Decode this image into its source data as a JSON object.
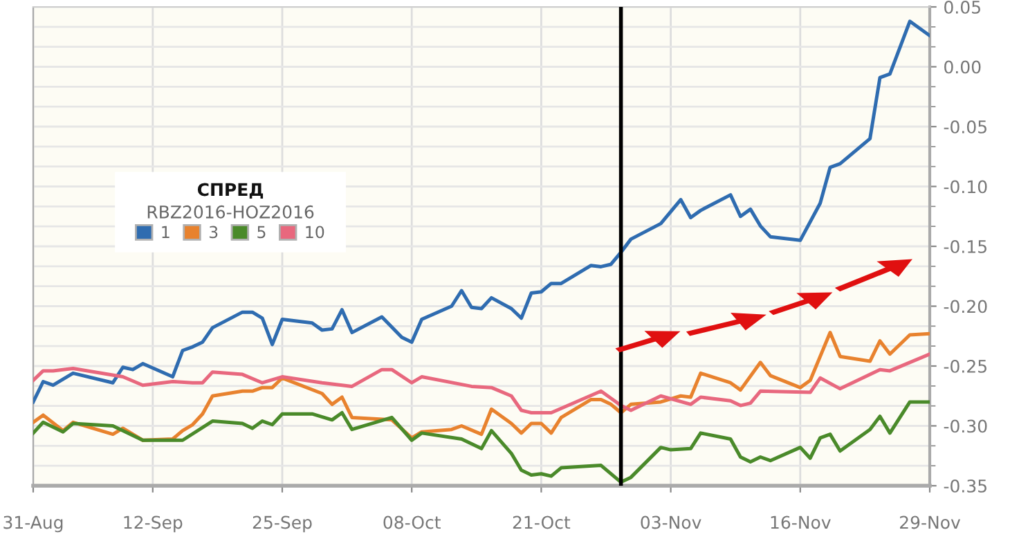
{
  "chart_data": {
    "type": "line",
    "legend_title": "СПРЕД",
    "subtitle": "RBZ2016-HOZ2016",
    "xlim": [
      "2016-08-31",
      "2016-11-29"
    ],
    "xticks": [
      {
        "value": "2016-08-31",
        "label": "31-Aug"
      },
      {
        "value": "2016-09-12",
        "label": "12-Sep"
      },
      {
        "value": "2016-09-25",
        "label": "25-Sep"
      },
      {
        "value": "2016-10-08",
        "label": "08-Oct"
      },
      {
        "value": "2016-10-21",
        "label": "21-Oct"
      },
      {
        "value": "2016-11-03",
        "label": "03-Nov"
      },
      {
        "value": "2016-11-16",
        "label": "16-Nov"
      },
      {
        "value": "2016-11-29",
        "label": "29-Nov"
      }
    ],
    "ylim": [
      -0.35,
      0.05
    ],
    "yticks": [
      {
        "value": -0.35,
        "label": "-0.35"
      },
      {
        "value": -0.3,
        "label": "-0.30"
      },
      {
        "value": -0.25,
        "label": "-0.25"
      },
      {
        "value": -0.2,
        "label": "-0.20"
      },
      {
        "value": -0.15,
        "label": "-0.15"
      },
      {
        "value": -0.1,
        "label": "-0.10"
      },
      {
        "value": -0.05,
        "label": "-0.05"
      },
      {
        "value": 0,
        "label": "0.00"
      },
      {
        "value": 0.05,
        "label": "0.05"
      }
    ],
    "grid": true,
    "legend": "left",
    "marker": "none",
    "line_style": "solid",
    "ref_lines": [
      {
        "axis": "x",
        "value": "2016-10-29",
        "label": null,
        "color": "#000000"
      }
    ],
    "series": [
      {
        "name": "1",
        "color": "#2f6cb0",
        "x": [
          "2016-08-31",
          "2016-09-01",
          "2016-09-02",
          "2016-09-04",
          "2016-09-08",
          "2016-09-09",
          "2016-09-10",
          "2016-09-11",
          "2016-09-14",
          "2016-09-15",
          "2016-09-16",
          "2016-09-17",
          "2016-09-18",
          "2016-09-21",
          "2016-09-22",
          "2016-09-23",
          "2016-09-24",
          "2016-09-25",
          "2016-09-28",
          "2016-09-29",
          "2016-09-30",
          "2016-10-01",
          "2016-10-02",
          "2016-10-05",
          "2016-10-07",
          "2016-10-08",
          "2016-10-09",
          "2016-10-12",
          "2016-10-13",
          "2016-10-14",
          "2016-10-15",
          "2016-10-16",
          "2016-10-18",
          "2016-10-19",
          "2016-10-20",
          "2016-10-21",
          "2016-10-22",
          "2016-10-23",
          "2016-10-26",
          "2016-10-27",
          "2016-10-28",
          "2016-10-29",
          "2016-10-30",
          "2016-11-02",
          "2016-11-04",
          "2016-11-05",
          "2016-11-06",
          "2016-11-09",
          "2016-11-10",
          "2016-11-11",
          "2016-11-12",
          "2016-11-13",
          "2016-11-16",
          "2016-11-18",
          "2016-11-19",
          "2016-11-20",
          "2016-11-23",
          "2016-11-24",
          "2016-11-25",
          "2016-11-27",
          "2016-11-29"
        ],
        "values": [
          -0.28,
          -0.263,
          -0.266,
          -0.256,
          -0.264,
          -0.251,
          -0.253,
          -0.248,
          -0.259,
          -0.237,
          -0.234,
          -0.23,
          -0.218,
          -0.205,
          -0.205,
          -0.21,
          -0.232,
          -0.211,
          -0.214,
          -0.22,
          -0.219,
          -0.203,
          -0.222,
          -0.209,
          -0.226,
          -0.23,
          -0.211,
          -0.2,
          -0.187,
          -0.201,
          -0.202,
          -0.193,
          -0.202,
          -0.21,
          -0.189,
          -0.188,
          -0.181,
          -0.181,
          -0.166,
          -0.167,
          -0.165,
          -0.155,
          -0.144,
          -0.131,
          -0.111,
          -0.126,
          -0.12,
          -0.107,
          -0.125,
          -0.119,
          -0.133,
          -0.142,
          -0.145,
          -0.114,
          -0.084,
          -0.081,
          -0.06,
          -0.009,
          -0.006,
          0.038,
          0.026
        ]
      },
      {
        "name": "3",
        "color": "#e8822e",
        "x": [
          "2016-08-31",
          "2016-09-01",
          "2016-09-03",
          "2016-09-04",
          "2016-09-08",
          "2016-09-09",
          "2016-09-11",
          "2016-09-14",
          "2016-09-15",
          "2016-09-16",
          "2016-09-17",
          "2016-09-18",
          "2016-09-21",
          "2016-09-22",
          "2016-09-23",
          "2016-09-24",
          "2016-09-25",
          "2016-09-29",
          "2016-09-30",
          "2016-10-01",
          "2016-10-02",
          "2016-10-06",
          "2016-10-08",
          "2016-10-09",
          "2016-10-12",
          "2016-10-13",
          "2016-10-15",
          "2016-10-16",
          "2016-10-18",
          "2016-10-19",
          "2016-10-20",
          "2016-10-21",
          "2016-10-22",
          "2016-10-23",
          "2016-10-26",
          "2016-10-27",
          "2016-10-28",
          "2016-10-29",
          "2016-10-30",
          "2016-11-02",
          "2016-11-04",
          "2016-11-05",
          "2016-11-06",
          "2016-11-09",
          "2016-11-10",
          "2016-11-12",
          "2016-11-13",
          "2016-11-16",
          "2016-11-17",
          "2016-11-19",
          "2016-11-20",
          "2016-11-23",
          "2016-11-24",
          "2016-11-25",
          "2016-11-27",
          "2016-11-29"
        ],
        "values": [
          -0.297,
          -0.291,
          -0.304,
          -0.297,
          -0.307,
          -0.302,
          -0.312,
          -0.311,
          -0.304,
          -0.299,
          -0.29,
          -0.275,
          -0.271,
          -0.271,
          -0.268,
          -0.268,
          -0.26,
          -0.273,
          -0.282,
          -0.276,
          -0.293,
          -0.295,
          -0.31,
          -0.305,
          -0.303,
          -0.3,
          -0.307,
          -0.286,
          -0.298,
          -0.306,
          -0.298,
          -0.298,
          -0.306,
          -0.293,
          -0.278,
          -0.278,
          -0.282,
          -0.289,
          -0.282,
          -0.28,
          -0.275,
          -0.276,
          -0.256,
          -0.264,
          -0.27,
          -0.247,
          -0.258,
          -0.268,
          -0.262,
          -0.222,
          -0.242,
          -0.246,
          -0.229,
          -0.24,
          -0.224,
          -0.223
        ]
      },
      {
        "name": "5",
        "color": "#4a8a2a",
        "x": [
          "2016-08-31",
          "2016-09-01",
          "2016-09-03",
          "2016-09-04",
          "2016-09-08",
          "2016-09-11",
          "2016-09-15",
          "2016-09-18",
          "2016-09-21",
          "2016-09-22",
          "2016-09-23",
          "2016-09-24",
          "2016-09-25",
          "2016-09-28",
          "2016-09-30",
          "2016-10-01",
          "2016-10-02",
          "2016-10-06",
          "2016-10-08",
          "2016-10-09",
          "2016-10-13",
          "2016-10-15",
          "2016-10-16",
          "2016-10-18",
          "2016-10-19",
          "2016-10-20",
          "2016-10-21",
          "2016-10-22",
          "2016-10-23",
          "2016-10-27",
          "2016-10-29",
          "2016-10-30",
          "2016-11-02",
          "2016-11-03",
          "2016-11-05",
          "2016-11-06",
          "2016-11-09",
          "2016-11-10",
          "2016-11-11",
          "2016-11-12",
          "2016-11-13",
          "2016-11-16",
          "2016-11-17",
          "2016-11-18",
          "2016-11-19",
          "2016-11-20",
          "2016-11-23",
          "2016-11-24",
          "2016-11-25",
          "2016-11-27",
          "2016-11-29"
        ],
        "values": [
          -0.306,
          -0.297,
          -0.305,
          -0.298,
          -0.3,
          -0.312,
          -0.312,
          -0.296,
          -0.298,
          -0.302,
          -0.296,
          -0.299,
          -0.29,
          -0.29,
          -0.295,
          -0.289,
          -0.303,
          -0.293,
          -0.312,
          -0.306,
          -0.311,
          -0.319,
          -0.304,
          -0.323,
          -0.337,
          -0.341,
          -0.34,
          -0.342,
          -0.335,
          -0.333,
          -0.347,
          -0.343,
          -0.318,
          -0.32,
          -0.319,
          -0.306,
          -0.311,
          -0.326,
          -0.33,
          -0.326,
          -0.329,
          -0.318,
          -0.327,
          -0.31,
          -0.307,
          -0.321,
          -0.303,
          -0.292,
          -0.306,
          -0.28,
          -0.28
        ]
      },
      {
        "name": "10",
        "color": "#e8687e",
        "x": [
          "2016-08-31",
          "2016-09-01",
          "2016-09-02",
          "2016-09-04",
          "2016-09-09",
          "2016-09-11",
          "2016-09-14",
          "2016-09-16",
          "2016-09-17",
          "2016-09-18",
          "2016-09-21",
          "2016-09-23",
          "2016-09-25",
          "2016-09-29",
          "2016-10-02",
          "2016-10-05",
          "2016-10-06",
          "2016-10-08",
          "2016-10-09",
          "2016-10-14",
          "2016-10-16",
          "2016-10-18",
          "2016-10-19",
          "2016-10-20",
          "2016-10-22",
          "2016-10-27",
          "2016-10-29",
          "2016-10-30",
          "2016-11-02",
          "2016-11-05",
          "2016-11-06",
          "2016-11-09",
          "2016-11-10",
          "2016-11-11",
          "2016-11-12",
          "2016-11-17",
          "2016-11-18",
          "2016-11-20",
          "2016-11-24",
          "2016-11-25",
          "2016-11-29"
        ],
        "values": [
          -0.262,
          -0.254,
          -0.254,
          -0.252,
          -0.259,
          -0.266,
          -0.263,
          -0.264,
          -0.264,
          -0.255,
          -0.257,
          -0.264,
          -0.259,
          -0.264,
          -0.267,
          -0.253,
          -0.253,
          -0.264,
          -0.259,
          -0.267,
          -0.268,
          -0.275,
          -0.287,
          -0.289,
          -0.289,
          -0.271,
          -0.283,
          -0.287,
          -0.275,
          -0.282,
          -0.276,
          -0.279,
          -0.283,
          -0.281,
          -0.271,
          -0.272,
          -0.26,
          -0.269,
          -0.253,
          -0.254,
          -0.24
        ]
      }
    ]
  }
}
